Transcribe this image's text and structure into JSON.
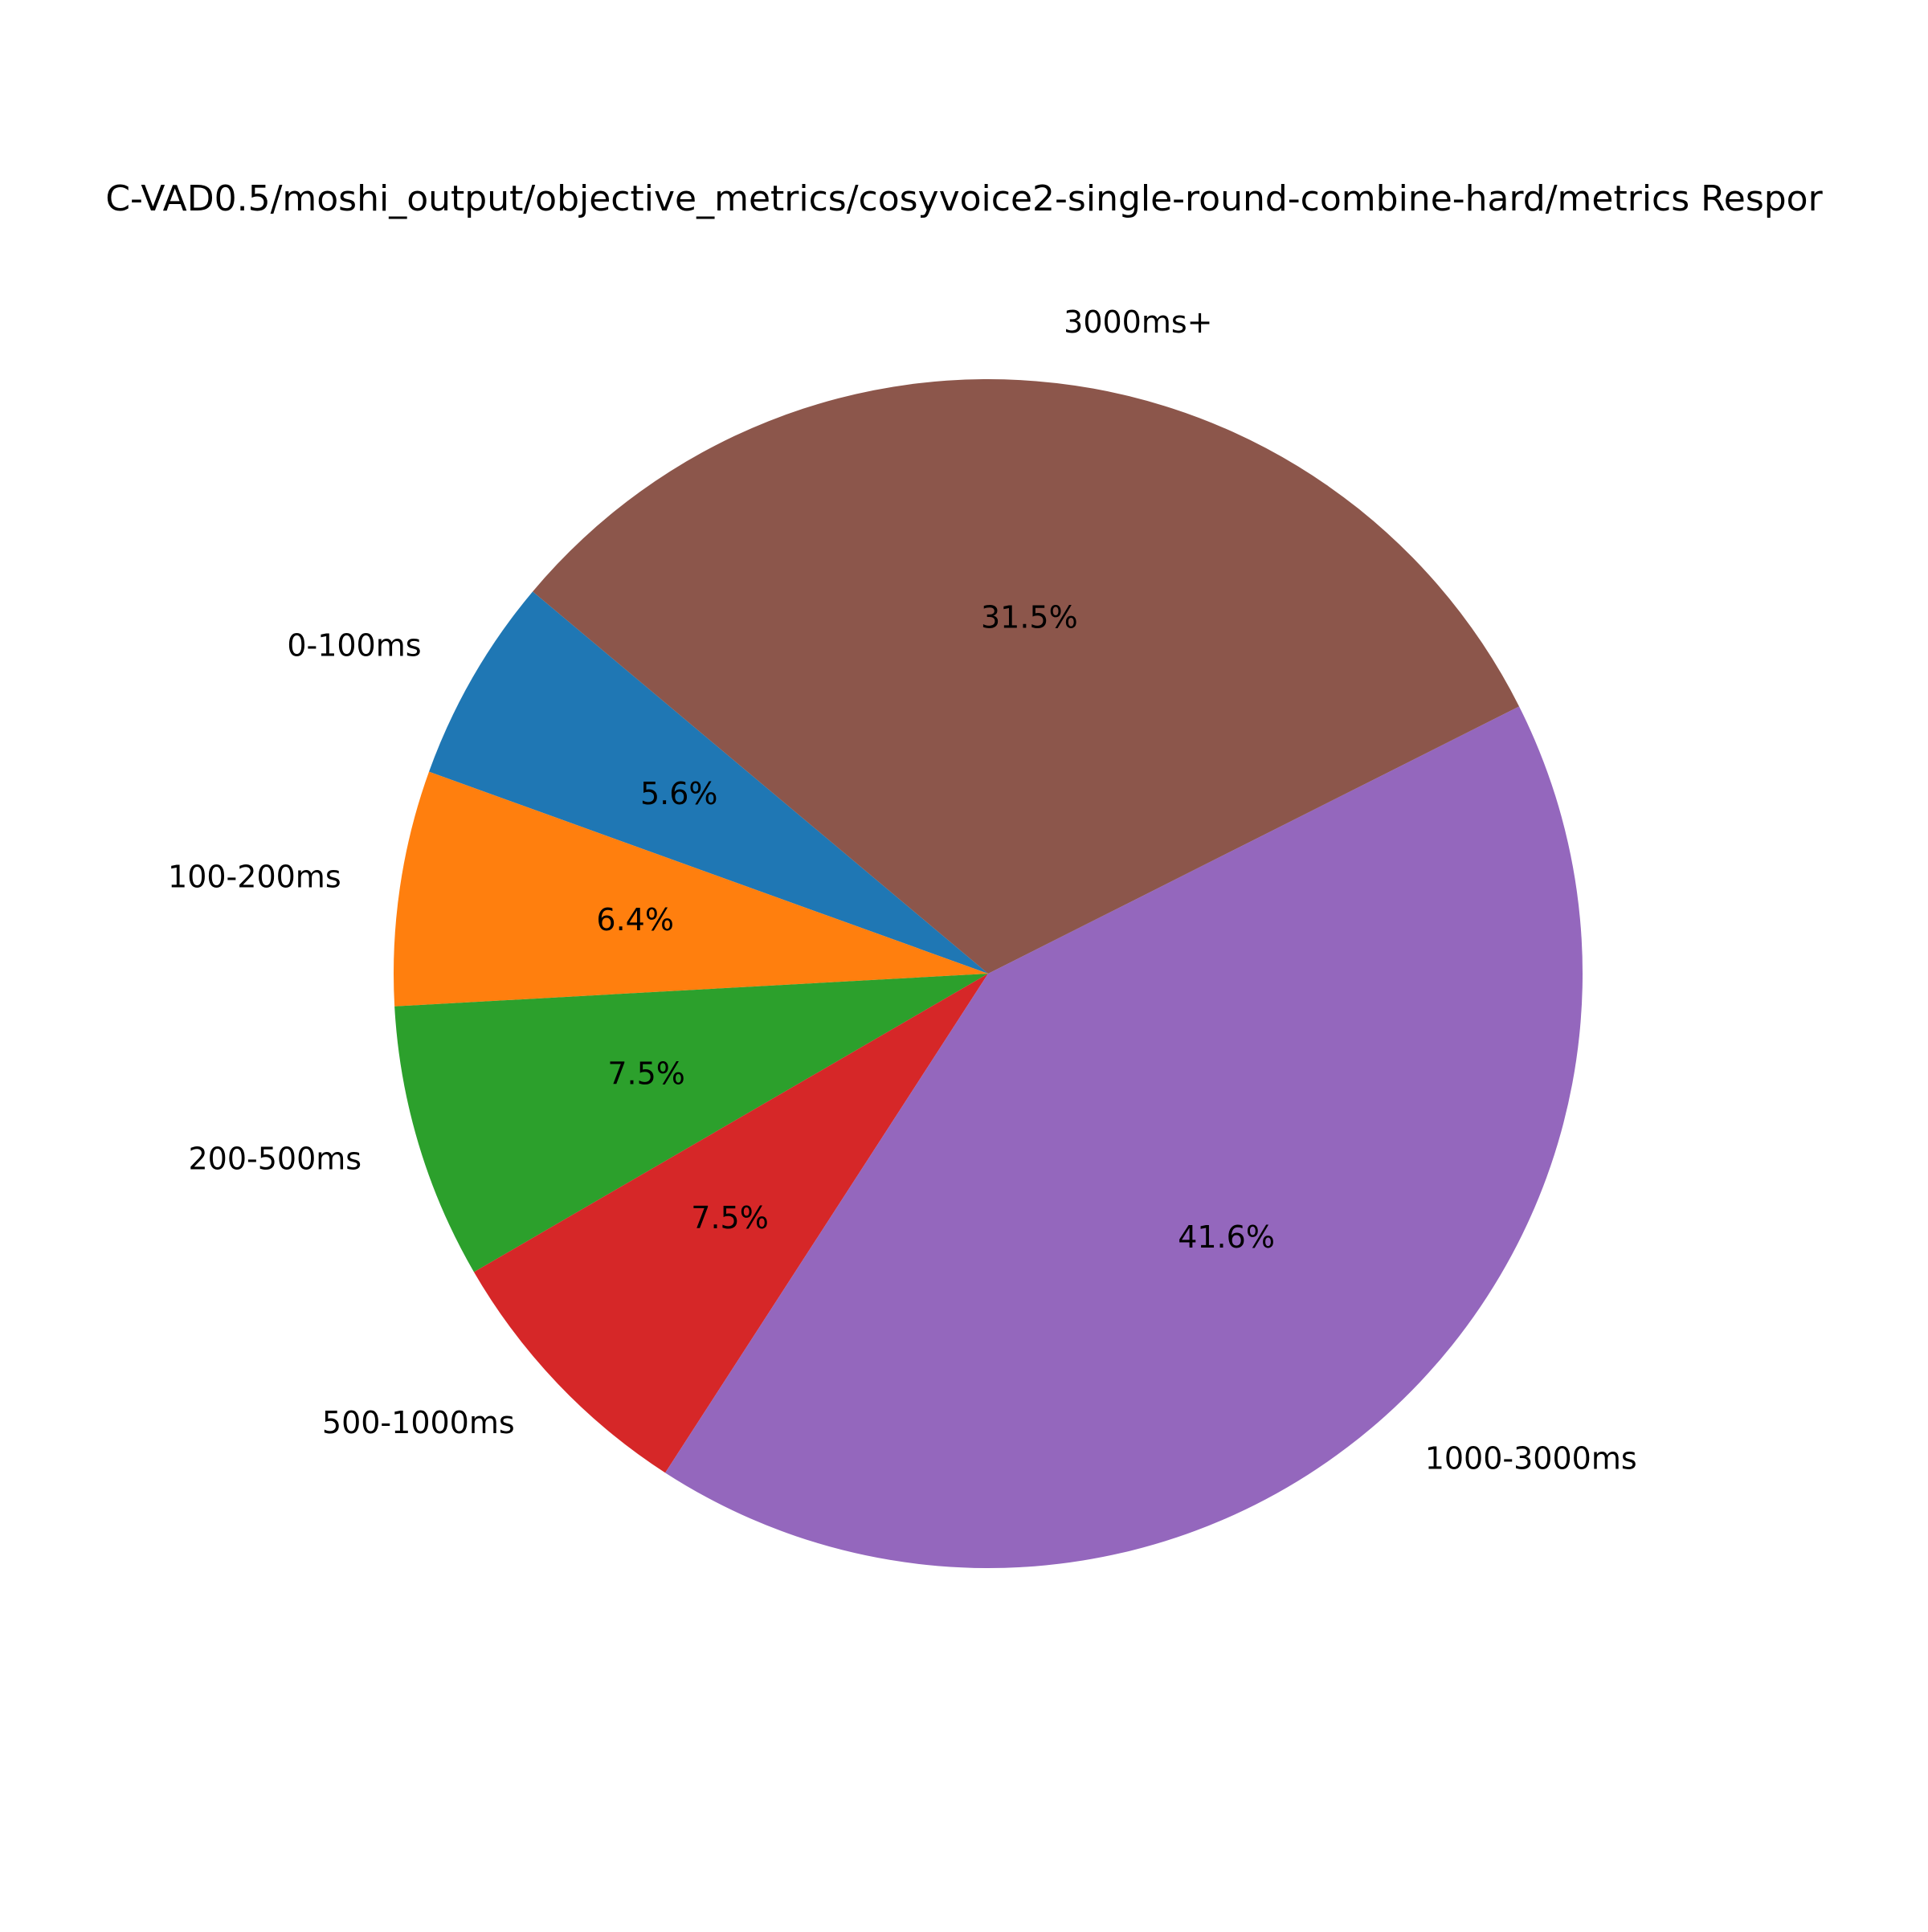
{
  "chart_data": {
    "type": "pie",
    "title": "C-VAD0.5/moshi_output/objective_metrics/cosyvoice2-single-round-combine-hard/metrics Respor",
    "categories": [
      "0-100ms",
      "100-200ms",
      "200-500ms",
      "500-1000ms",
      "1000-3000ms",
      "3000ms+"
    ],
    "values": [
      5.6,
      6.4,
      7.5,
      7.5,
      41.6,
      31.5
    ],
    "percent_labels": [
      "5.6%",
      "6.4%",
      "7.5%",
      "7.5%",
      "41.6%",
      "31.5%"
    ],
    "colors": [
      "#1f77b4",
      "#ff7f0e",
      "#2ca02c",
      "#d62728",
      "#9467bd",
      "#8c564b"
    ],
    "start_angle": 140,
    "direction": "counterclockwise",
    "legend": "none"
  }
}
